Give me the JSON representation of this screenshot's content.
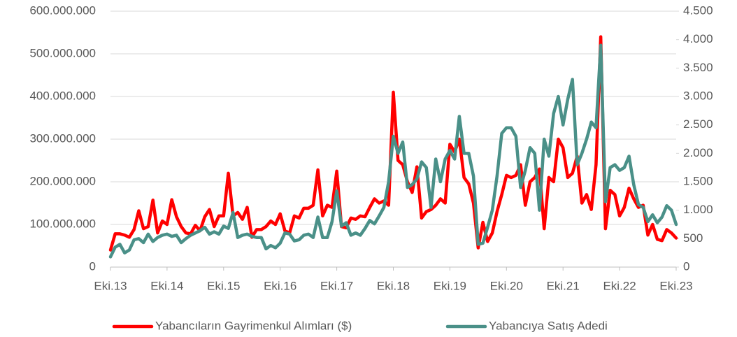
{
  "chart_data": {
    "type": "line",
    "categories": [
      "Eki.13",
      null,
      null,
      null,
      null,
      null,
      null,
      null,
      null,
      null,
      null,
      null,
      "Eki.14",
      null,
      null,
      null,
      null,
      null,
      null,
      null,
      null,
      null,
      null,
      null,
      "Eki.15",
      null,
      null,
      null,
      null,
      null,
      null,
      null,
      null,
      null,
      null,
      null,
      "Eki.16",
      null,
      null,
      null,
      null,
      null,
      null,
      null,
      null,
      null,
      null,
      null,
      "Eki.17",
      null,
      null,
      null,
      null,
      null,
      null,
      null,
      null,
      null,
      null,
      null,
      "Eki.18",
      null,
      null,
      null,
      null,
      null,
      null,
      null,
      null,
      null,
      null,
      null,
      "Eki.19",
      null,
      null,
      null,
      null,
      null,
      null,
      null,
      null,
      null,
      null,
      null,
      "Eki.20",
      null,
      null,
      null,
      null,
      null,
      null,
      null,
      null,
      null,
      null,
      null,
      "Eki.21",
      null,
      null,
      null,
      null,
      null,
      null,
      null,
      null,
      null,
      null,
      null,
      "Eki.22",
      null,
      null,
      null,
      null,
      null,
      null,
      null,
      null,
      null,
      null,
      null,
      "Eki.23"
    ],
    "series": [
      {
        "name": "Yabancıların Gayrimenkul Alımları ($)",
        "color": "#ff0000",
        "axis": "y",
        "values": [
          40000000,
          78000000,
          78000000,
          75000000,
          70000000,
          88000000,
          132000000,
          90000000,
          95000000,
          157000000,
          80000000,
          108000000,
          100000000,
          158000000,
          118000000,
          95000000,
          80000000,
          78000000,
          98000000,
          85000000,
          118000000,
          135000000,
          95000000,
          120000000,
          120000000,
          220000000,
          120000000,
          128000000,
          112000000,
          140000000,
          70000000,
          88000000,
          88000000,
          95000000,
          108000000,
          100000000,
          125000000,
          85000000,
          80000000,
          120000000,
          115000000,
          138000000,
          138000000,
          145000000,
          228000000,
          120000000,
          145000000,
          140000000,
          225000000,
          95000000,
          92000000,
          115000000,
          112000000,
          120000000,
          118000000,
          140000000,
          160000000,
          150000000,
          155000000,
          145000000,
          410000000,
          250000000,
          240000000,
          200000000,
          175000000,
          235000000,
          115000000,
          130000000,
          135000000,
          145000000,
          160000000,
          150000000,
          288000000,
          270000000,
          300000000,
          210000000,
          195000000,
          150000000,
          45000000,
          105000000,
          60000000,
          80000000,
          130000000,
          170000000,
          215000000,
          210000000,
          215000000,
          240000000,
          145000000,
          200000000,
          210000000,
          230000000,
          90000000,
          210000000,
          200000000,
          300000000,
          280000000,
          210000000,
          220000000,
          260000000,
          150000000,
          170000000,
          135000000,
          240000000,
          540000000,
          90000000,
          180000000,
          170000000,
          120000000,
          140000000,
          185000000,
          160000000,
          140000000,
          145000000,
          75000000,
          100000000,
          65000000,
          62000000,
          88000000,
          80000000,
          68000000
        ]
      },
      {
        "name": "Yabancıya Satış Adedi",
        "color": "#4a9088",
        "axis": "y2",
        "values": [
          180,
          350,
          400,
          250,
          300,
          480,
          500,
          430,
          580,
          450,
          520,
          560,
          580,
          540,
          560,
          430,
          500,
          560,
          600,
          640,
          700,
          580,
          620,
          580,
          720,
          680,
          960,
          520,
          560,
          580,
          540,
          520,
          520,
          320,
          380,
          340,
          420,
          600,
          580,
          460,
          480,
          560,
          580,
          520,
          880,
          520,
          520,
          800,
          1340,
          720,
          780,
          560,
          600,
          560,
          680,
          820,
          760,
          900,
          1050,
          1500,
          2300,
          2000,
          2200,
          1400,
          1450,
          1550,
          1850,
          1750,
          1050,
          1900,
          1500,
          1900,
          2050,
          1900,
          2650,
          2000,
          2000,
          1600,
          400,
          420,
          700,
          1000,
          1600,
          2350,
          2450,
          2450,
          2300,
          1400,
          1700,
          2100,
          2000,
          1000,
          2250,
          1950,
          2700,
          3000,
          2500,
          2950,
          3300,
          1800,
          2000,
          2250,
          2550,
          2450,
          3900,
          1150,
          1750,
          1800,
          1700,
          1750,
          1950,
          1450,
          1100,
          1050,
          800,
          920,
          780,
          880,
          1080,
          1000,
          750
        ]
      }
    ],
    "ylim": [
      0,
      600000000
    ],
    "yticks": [
      0,
      {
        "value": 100000000,
        "label": "100.000.000"
      },
      {
        "value": 200000000,
        "label": "200.000.000"
      },
      {
        "value": 300000000,
        "label": "300.000.000"
      },
      {
        "value": 400000000,
        "label": "400.000.000"
      },
      {
        "value": 500000000,
        "label": "500.000.000"
      },
      {
        "value": 600000000,
        "label": "600.000.000"
      }
    ],
    "y2lim": [
      0,
      4500
    ],
    "y2ticks": [
      0,
      500,
      {
        "value": 1000,
        "label": "1.000"
      },
      {
        "value": 1500,
        "label": "1.500"
      },
      {
        "value": 2000,
        "label": "2.000"
      },
      {
        "value": 2500,
        "label": "2.500"
      },
      {
        "value": 3000,
        "label": "3.000"
      },
      {
        "value": 3500,
        "label": "3.500"
      },
      {
        "value": 4000,
        "label": "4.000"
      },
      {
        "value": 4500,
        "label": "4.500"
      }
    ],
    "grid": true,
    "legend": "bottom"
  }
}
